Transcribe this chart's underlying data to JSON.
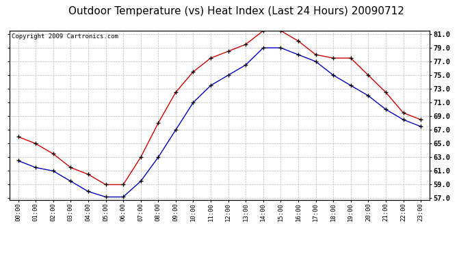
{
  "title": "Outdoor Temperature (vs) Heat Index (Last 24 Hours) 20090712",
  "copyright": "Copyright 2009 Cartronics.com",
  "x_labels": [
    "00:00",
    "01:00",
    "02:00",
    "03:00",
    "04:00",
    "05:00",
    "06:00",
    "07:00",
    "08:00",
    "09:00",
    "10:00",
    "11:00",
    "12:00",
    "13:00",
    "14:00",
    "15:00",
    "16:00",
    "17:00",
    "18:00",
    "19:00",
    "20:00",
    "21:00",
    "22:00",
    "23:00"
  ],
  "temp_blue": [
    62.5,
    61.5,
    61.0,
    59.5,
    58.0,
    57.2,
    57.2,
    59.5,
    63.0,
    67.0,
    71.0,
    73.5,
    75.0,
    76.5,
    79.0,
    79.0,
    78.0,
    77.0,
    75.0,
    73.5,
    72.0,
    70.0,
    68.5,
    67.5
  ],
  "heat_red": [
    66.0,
    65.0,
    63.5,
    61.5,
    60.5,
    59.0,
    59.0,
    63.0,
    68.0,
    72.5,
    75.5,
    77.5,
    78.5,
    79.5,
    81.5,
    81.5,
    80.0,
    78.0,
    77.5,
    77.5,
    75.0,
    72.5,
    69.5,
    68.5
  ],
  "ylim_min": 57.0,
  "ylim_max": 81.0,
  "ytick_step": 2.0,
  "blue_color": "#0000bb",
  "red_color": "#cc0000",
  "bg_color": "#ffffff",
  "plot_bg_color": "#ffffff",
  "grid_color": "#bbbbbb",
  "title_fontsize": 11,
  "copyright_fontsize": 6.5
}
